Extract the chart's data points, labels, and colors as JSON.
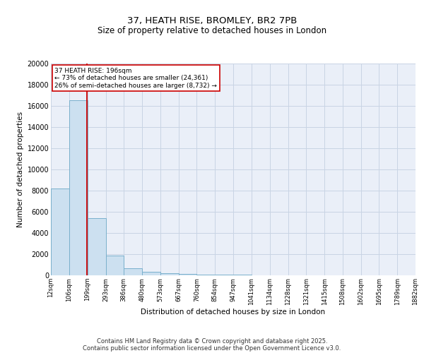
{
  "title1": "37, HEATH RISE, BROMLEY, BR2 7PB",
  "title2": "Size of property relative to detached houses in London",
  "xlabel": "Distribution of detached houses by size in London",
  "ylabel": "Number of detached properties",
  "bar_edges": [
    12,
    106,
    199,
    293,
    386,
    480,
    573,
    667,
    760,
    854,
    947,
    1041,
    1134,
    1228,
    1321,
    1415,
    1508,
    1602,
    1695,
    1789,
    1882
  ],
  "bar_heights": [
    8200,
    16500,
    5400,
    1850,
    700,
    350,
    230,
    150,
    100,
    80,
    50,
    30,
    20,
    15,
    10,
    8,
    5,
    4,
    3,
    2
  ],
  "bar_color": "#cce0f0",
  "bar_edgecolor": "#7ab0cc",
  "red_line_x": 196,
  "annotation_line1": "37 HEATH RISE: 196sqm",
  "annotation_line2": "← 73% of detached houses are smaller (24,361)",
  "annotation_line3": "26% of semi-detached houses are larger (8,732) →",
  "annotation_box_color": "#ffffff",
  "annotation_box_edgecolor": "#cc0000",
  "ylim": [
    0,
    20000
  ],
  "yticks": [
    0,
    2000,
    4000,
    6000,
    8000,
    10000,
    12000,
    14000,
    16000,
    18000,
    20000
  ],
  "grid_color": "#c8d4e4",
  "background_color": "#eaeff8",
  "footer_line1": "Contains HM Land Registry data © Crown copyright and database right 2025.",
  "footer_line2": "Contains public sector information licensed under the Open Government Licence v3.0.",
  "tick_labels": [
    "12sqm",
    "106sqm",
    "199sqm",
    "293sqm",
    "386sqm",
    "480sqm",
    "573sqm",
    "667sqm",
    "760sqm",
    "854sqm",
    "947sqm",
    "1041sqm",
    "1134sqm",
    "1228sqm",
    "1321sqm",
    "1415sqm",
    "1508sqm",
    "1602sqm",
    "1695sqm",
    "1789sqm",
    "1882sqm"
  ]
}
